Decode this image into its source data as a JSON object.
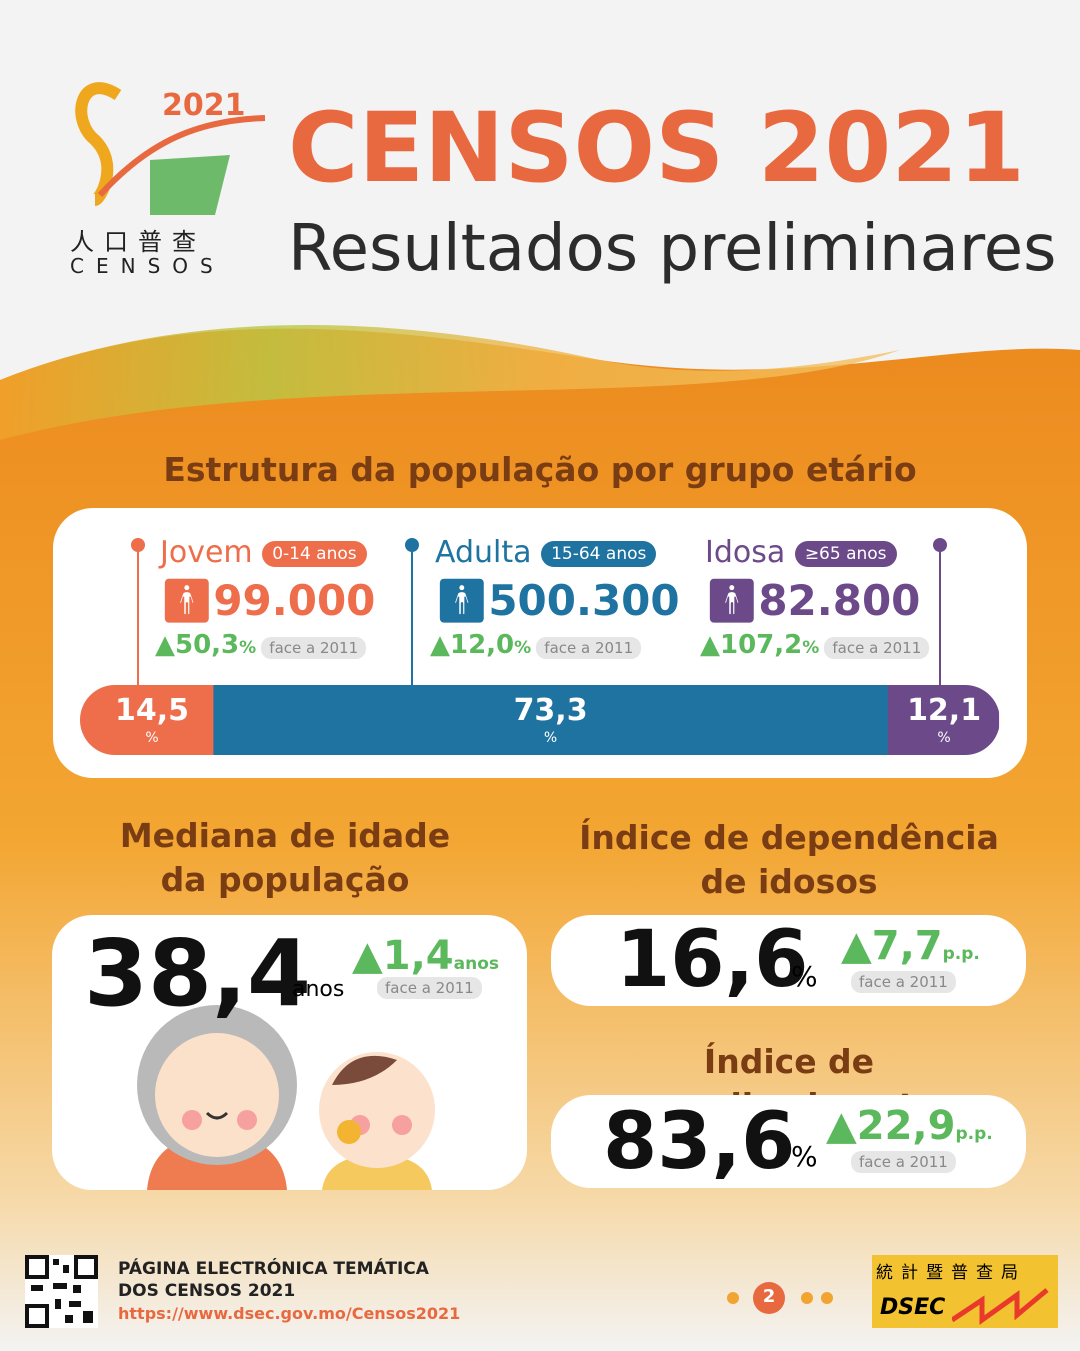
{
  "header": {
    "logo_year": "2021",
    "logo_chinese": "人口普查",
    "logo_text": "CENSOS",
    "title": "CENSOS 2021",
    "subtitle": "Resultados preliminares"
  },
  "structure": {
    "title": "Estrutura da população por grupo etário",
    "groups": [
      {
        "name": "Jovem",
        "range": "0-14 anos",
        "population": "99.000",
        "change": "50,3",
        "change_unit": "%",
        "compare": "face a 2011",
        "share": 14.5,
        "share_label": "14,5",
        "share_unit": "%",
        "color": "#ee6d4a"
      },
      {
        "name": "Adulta",
        "range": "15-64 anos",
        "population": "500.300",
        "change": "12,0",
        "change_unit": "%",
        "compare": "face a 2011",
        "share": 73.3,
        "share_label": "73,3",
        "share_unit": "%",
        "color": "#1f73a0"
      },
      {
        "name": "Idosa",
        "range": "≥65 anos",
        "population": "82.800",
        "change": "107,2",
        "change_unit": "%",
        "compare": "face a 2011",
        "share": 12.1,
        "share_label": "12,1",
        "share_unit": "%",
        "color": "#6c4a8a"
      }
    ]
  },
  "median": {
    "title": [
      "Mediana de idade",
      "da população"
    ],
    "value": "38,4",
    "unit": "anos",
    "change": "1,4",
    "change_unit": "anos",
    "compare": "face a 2011"
  },
  "dependency": {
    "title": [
      "Índice de dependência",
      "de idosos"
    ],
    "value": "16,6",
    "unit": "%",
    "change": "7,7",
    "change_unit": "p.p.",
    "compare": "face a 2011"
  },
  "aging": {
    "title": "Índice de envelhecimento",
    "value": "83,6",
    "unit": "%",
    "change": "22,9",
    "change_unit": "p.p.",
    "compare": "face a 2011"
  },
  "footer": {
    "lines": [
      "PÁGINA ELECTRÓNICA TEMÁTICA",
      "DOS CENSOS 2021"
    ],
    "url": "https://www.dsec.gov.mo/Censos2021",
    "page": "2",
    "agency_chinese": "統計暨普查局",
    "agency": "DSEC"
  }
}
